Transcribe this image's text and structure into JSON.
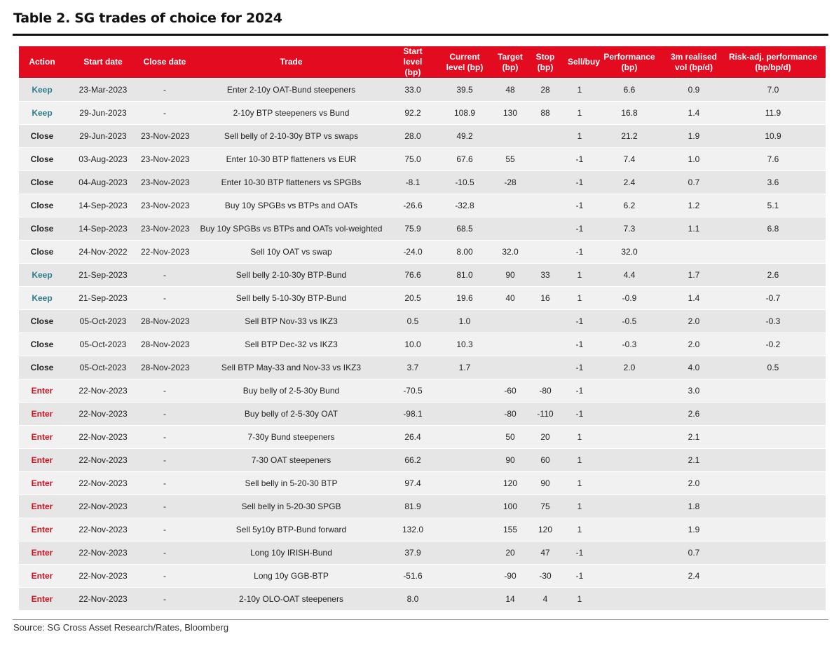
{
  "title": "Table 2. SG trades of choice for 2024",
  "table": {
    "header": [
      "Action",
      "Start date",
      "Close date",
      "Trade",
      "Start level\n(bp)",
      "Current\nlevel (bp)",
      "Target\n(bp)",
      "Stop\n(bp)",
      "Sell/buy",
      "Performance\n(bp)",
      "3m realised\nvol (bp/d)",
      "Risk-adj. performance\n(bp/bp/d)"
    ],
    "action_colors": {
      "Keep": "#2e7d8a",
      "Close": "#222222",
      "Enter": "#d0101e"
    },
    "rows": [
      [
        "Keep",
        "23-Mar-2023",
        "-",
        "Enter 2-10y OAT-Bund steepeners",
        "33.0",
        "39.5",
        "48",
        "28",
        "1",
        "6.6",
        "0.9",
        "7.0"
      ],
      [
        "Keep",
        "29-Jun-2023",
        "-",
        "2-10y BTP steepeners vs Bund",
        "92.2",
        "108.9",
        "130",
        "88",
        "1",
        "16.8",
        "1.4",
        "11.9"
      ],
      [
        "Close",
        "29-Jun-2023",
        "23-Nov-2023",
        "Sell belly of 2-10-30y BTP vs swaps",
        "28.0",
        "49.2",
        null,
        null,
        "1",
        "21.2",
        "1.9",
        "10.9"
      ],
      [
        "Close",
        "03-Aug-2023",
        "23-Nov-2023",
        "Enter 10-30 BTP flatteners vs EUR",
        "75.0",
        "67.6",
        "55",
        null,
        "-1",
        "7.4",
        "1.0",
        "7.6"
      ],
      [
        "Close",
        "04-Aug-2023",
        "23-Nov-2023",
        "Enter 10-30 BTP flatteners vs SPGBs",
        "-8.1",
        "-10.5",
        "-28",
        null,
        "-1",
        "2.4",
        "0.7",
        "3.6"
      ],
      [
        "Close",
        "14-Sep-2023",
        "23-Nov-2023",
        "Buy 10y SPGBs vs BTPs and OATs",
        "-26.6",
        "-32.8",
        null,
        null,
        "-1",
        "6.2",
        "1.2",
        "5.1"
      ],
      [
        "Close",
        "14-Sep-2023",
        "23-Nov-2023",
        "Buy 10y SPGBs vs BTPs and OATs vol-weighted",
        "75.9",
        "68.5",
        null,
        null,
        "-1",
        "7.3",
        "1.1",
        "6.8"
      ],
      [
        "Close",
        "24-Nov-2022",
        "22-Nov-2023",
        "Sell 10y OAT vs swap",
        "-24.0",
        "8.00",
        "32.0",
        null,
        "-1",
        "32.0",
        null,
        null
      ],
      [
        "Keep",
        "21-Sep-2023",
        "-",
        "Sell belly 2-10-30y BTP-Bund",
        "76.6",
        "81.0",
        "90",
        "33",
        "1",
        "4.4",
        "1.7",
        "2.6"
      ],
      [
        "Keep",
        "21-Sep-2023",
        "-",
        "Sell belly 5-10-30y BTP-Bund",
        "20.5",
        "19.6",
        "40",
        "16",
        "1",
        "-0.9",
        "1.4",
        "-0.7"
      ],
      [
        "Close",
        "05-Oct-2023",
        "28-Nov-2023",
        "Sell BTP Nov-33 vs IKZ3",
        "0.5",
        "1.0",
        null,
        null,
        "-1",
        "-0.5",
        "2.0",
        "-0.3"
      ],
      [
        "Close",
        "05-Oct-2023",
        "28-Nov-2023",
        "Sell BTP Dec-32 vs IKZ3",
        "10.0",
        "10.3",
        null,
        null,
        "-1",
        "-0.3",
        "2.0",
        "-0.2"
      ],
      [
        "Close",
        "05-Oct-2023",
        "28-Nov-2023",
        "Sell BTP May-33 and Nov-33 vs IKZ3",
        "3.7",
        "1.7",
        null,
        null,
        "-1",
        "2.0",
        "4.0",
        "0.5"
      ],
      [
        "Enter",
        "22-Nov-2023",
        "-",
        "Buy belly of 2-5-30y Bund",
        "-70.5",
        null,
        "-60",
        "-80",
        "-1",
        null,
        "3.0",
        null
      ],
      [
        "Enter",
        "22-Nov-2023",
        "-",
        "Buy belly of 2-5-30y OAT",
        "-98.1",
        null,
        "-80",
        "-110",
        "-1",
        null,
        "2.6",
        null
      ],
      [
        "Enter",
        "22-Nov-2023",
        "-",
        "7-30y Bund steepeners",
        "26.4",
        null,
        "50",
        "20",
        "1",
        null,
        "2.1",
        null
      ],
      [
        "Enter",
        "22-Nov-2023",
        "-",
        "7-30 OAT steepeners",
        "66.2",
        null,
        "90",
        "60",
        "1",
        null,
        "2.1",
        null
      ],
      [
        "Enter",
        "22-Nov-2023",
        "-",
        "Sell belly in 5-20-30 BTP",
        "97.4",
        null,
        "120",
        "90",
        "1",
        null,
        "2.0",
        null
      ],
      [
        "Enter",
        "22-Nov-2023",
        "-",
        "Sell belly in 5-20-30 SPGB",
        "81.9",
        null,
        "100",
        "75",
        "1",
        null,
        "1.8",
        null
      ],
      [
        "Enter",
        "22-Nov-2023",
        "-",
        "Sell 5y10y BTP-Bund forward",
        "132.0",
        null,
        "155",
        "120",
        "1",
        null,
        "1.9",
        null
      ],
      [
        "Enter",
        "22-Nov-2023",
        "-",
        "Long 10y IRISH-Bund",
        "37.9",
        null,
        "20",
        "47",
        "-1",
        null,
        "0.7",
        null
      ],
      [
        "Enter",
        "22-Nov-2023",
        "-",
        "Long 10y GGB-BTP",
        "-51.6",
        null,
        "-90",
        "-30",
        "-1",
        null,
        "2.4",
        null
      ],
      [
        "Enter",
        "22-Nov-2023",
        "-",
        "2-10y OLO-OAT steepeners",
        "8.0",
        null,
        "14",
        "4",
        "1",
        null,
        null,
        null
      ]
    ]
  },
  "source": "Source: SG Cross Asset Research/Rates, Bloomberg"
}
